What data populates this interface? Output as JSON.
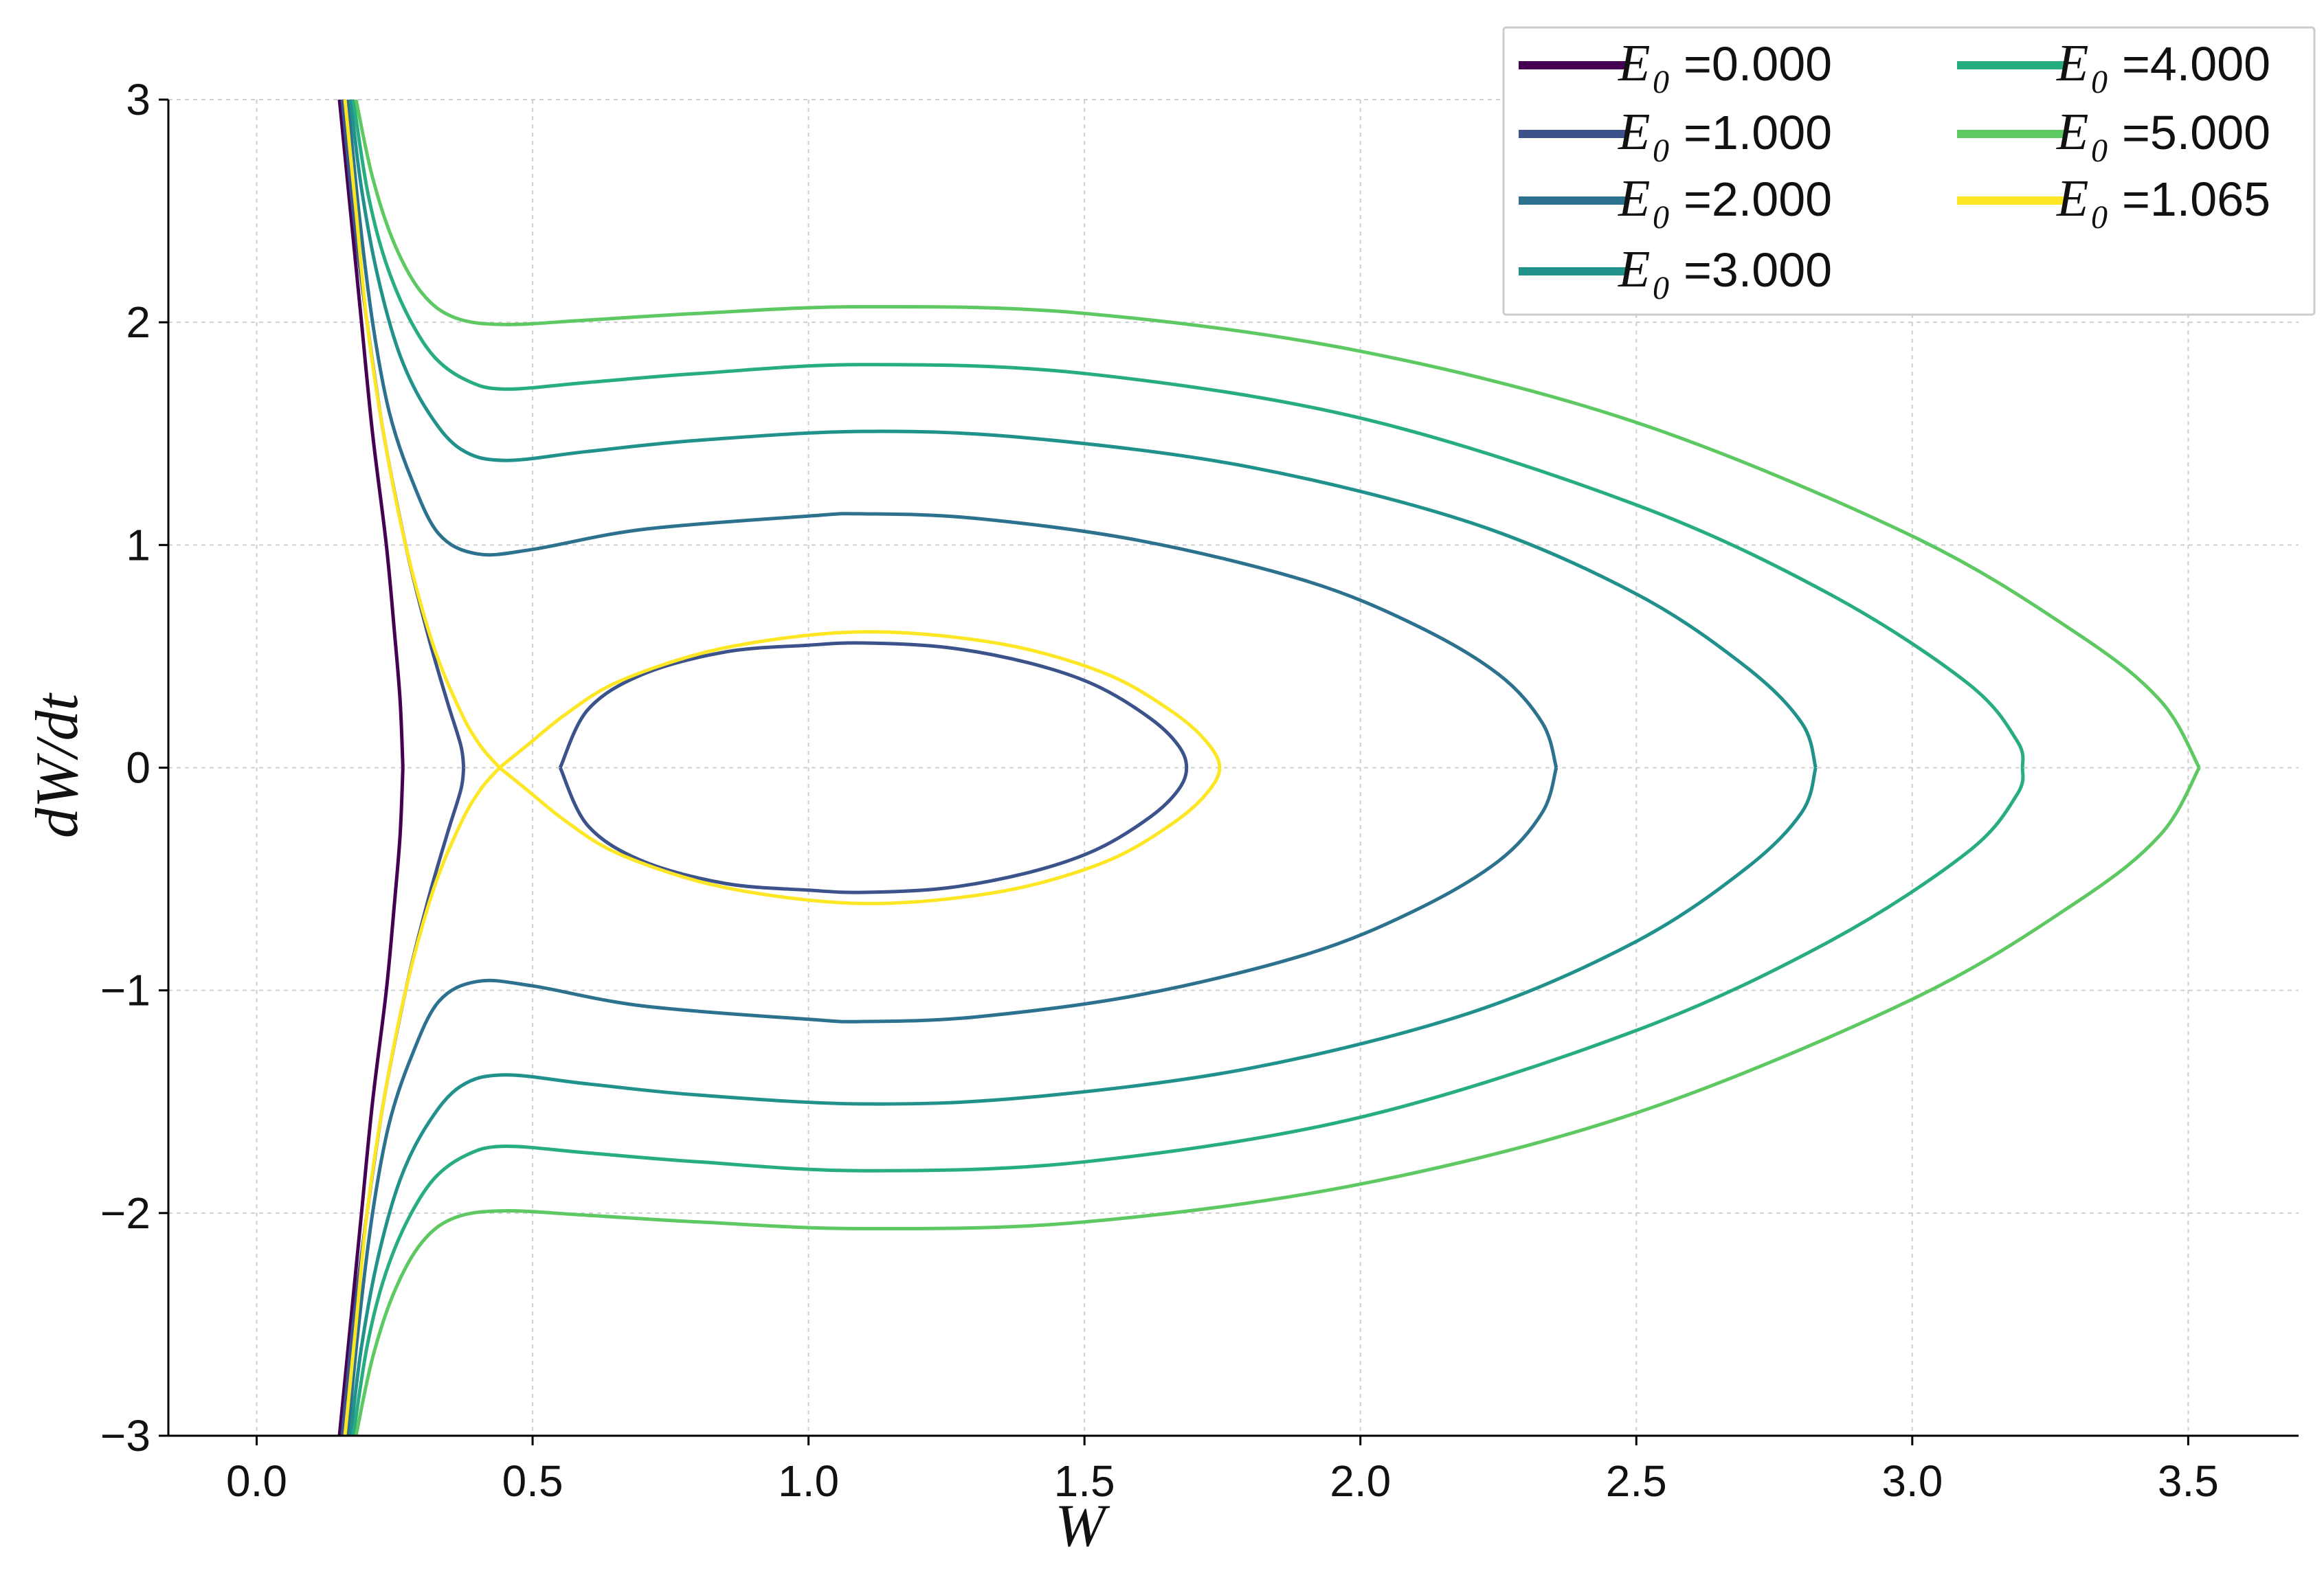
{
  "chart_data": {
    "type": "line",
    "title": "",
    "xlabel": "W",
    "ylabel": "dW/dt",
    "xlim": [
      -0.16,
      3.7
    ],
    "ylim": [
      -3,
      3
    ],
    "xticks": [
      0.0,
      0.5,
      1.0,
      1.5,
      2.0,
      2.5,
      3.0,
      3.5
    ],
    "xtick_labels": [
      "0.0",
      "0.5",
      "1.0",
      "1.5",
      "2.0",
      "2.5",
      "3.0",
      "3.5"
    ],
    "yticks": [
      -3,
      -2,
      -1,
      0,
      1,
      2,
      3
    ],
    "ytick_labels": [
      "−3",
      "−2",
      "−1",
      "0",
      "1",
      "2",
      "3"
    ],
    "grid": true,
    "legend_position": "top-right",
    "legend_symbol": "E",
    "legend_subscript": "0",
    "series": [
      {
        "name": "=0.000",
        "color": "#440154",
        "upper": [
          [
            0.15,
            3
          ],
          [
            0.17,
            2.5
          ],
          [
            0.19,
            2
          ],
          [
            0.21,
            1.5
          ],
          [
            0.235,
            1
          ],
          [
            0.25,
            0.6
          ],
          [
            0.26,
            0.3
          ],
          [
            0.265,
            0
          ]
        ],
        "lower": [
          [
            0.265,
            0
          ],
          [
            0.26,
            -0.3
          ],
          [
            0.25,
            -0.6
          ],
          [
            0.235,
            -1
          ],
          [
            0.21,
            -1.5
          ],
          [
            0.19,
            -2
          ],
          [
            0.17,
            -2.5
          ],
          [
            0.15,
            -3
          ]
        ]
      },
      {
        "name": "=1.000",
        "color": "#3b528b",
        "left_upper": [
          [
            0.155,
            3
          ],
          [
            0.175,
            2.5
          ],
          [
            0.2,
            2
          ],
          [
            0.23,
            1.5
          ],
          [
            0.27,
            1
          ],
          [
            0.31,
            0.6
          ],
          [
            0.345,
            0.3
          ],
          [
            0.37,
            0.1
          ],
          [
            0.375,
            0
          ]
        ],
        "left_lower": [
          [
            0.375,
            0
          ],
          [
            0.37,
            -0.1
          ],
          [
            0.345,
            -0.3
          ],
          [
            0.31,
            -0.6
          ],
          [
            0.27,
            -1
          ],
          [
            0.23,
            -1.5
          ],
          [
            0.2,
            -2
          ],
          [
            0.175,
            -2.5
          ],
          [
            0.155,
            -3
          ]
        ],
        "loop": [
          [
            0.55,
            0
          ],
          [
            0.6,
            0.26
          ],
          [
            0.7,
            0.42
          ],
          [
            0.85,
            0.52
          ],
          [
            1.0,
            0.55
          ],
          [
            1.1,
            0.56
          ],
          [
            1.25,
            0.54
          ],
          [
            1.4,
            0.47
          ],
          [
            1.52,
            0.37
          ],
          [
            1.62,
            0.22
          ],
          [
            1.67,
            0.1
          ],
          [
            1.685,
            0
          ],
          [
            1.67,
            -0.1
          ],
          [
            1.62,
            -0.22
          ],
          [
            1.52,
            -0.37
          ],
          [
            1.4,
            -0.47
          ],
          [
            1.25,
            -0.54
          ],
          [
            1.1,
            -0.56
          ],
          [
            1.0,
            -0.55
          ],
          [
            0.85,
            -0.52
          ],
          [
            0.7,
            -0.42
          ],
          [
            0.6,
            -0.26
          ],
          [
            0.55,
            0
          ]
        ]
      },
      {
        "name": "=2.000",
        "color": "#2c728e",
        "upper": [
          [
            0.165,
            3
          ],
          [
            0.185,
            2.5
          ],
          [
            0.21,
            2
          ],
          [
            0.24,
            1.6
          ],
          [
            0.28,
            1.3
          ],
          [
            0.33,
            1.05
          ],
          [
            0.4,
            0.96
          ],
          [
            0.5,
            0.98
          ],
          [
            0.7,
            1.07
          ],
          [
            1.0,
            1.13
          ],
          [
            1.1,
            1.14
          ],
          [
            1.3,
            1.12
          ],
          [
            1.6,
            1.02
          ],
          [
            1.9,
            0.84
          ],
          [
            2.1,
            0.64
          ],
          [
            2.25,
            0.42
          ],
          [
            2.33,
            0.2
          ],
          [
            2.355,
            0
          ]
        ],
        "lower": [
          [
            2.355,
            0
          ],
          [
            2.33,
            -0.2
          ],
          [
            2.25,
            -0.42
          ],
          [
            2.1,
            -0.64
          ],
          [
            1.9,
            -0.84
          ],
          [
            1.6,
            -1.02
          ],
          [
            1.3,
            -1.12
          ],
          [
            1.1,
            -1.14
          ],
          [
            1.0,
            -1.13
          ],
          [
            0.7,
            -1.07
          ],
          [
            0.5,
            -0.98
          ],
          [
            0.4,
            -0.96
          ],
          [
            0.33,
            -1.05
          ],
          [
            0.28,
            -1.3
          ],
          [
            0.24,
            -1.6
          ],
          [
            0.21,
            -2
          ],
          [
            0.185,
            -2.5
          ],
          [
            0.165,
            -3
          ]
        ]
      },
      {
        "name": "=3.000",
        "color": "#21918c",
        "upper": [
          [
            0.17,
            3
          ],
          [
            0.19,
            2.6
          ],
          [
            0.22,
            2.2
          ],
          [
            0.26,
            1.85
          ],
          [
            0.31,
            1.6
          ],
          [
            0.37,
            1.43
          ],
          [
            0.45,
            1.38
          ],
          [
            0.6,
            1.42
          ],
          [
            0.8,
            1.47
          ],
          [
            1.1,
            1.51
          ],
          [
            1.4,
            1.48
          ],
          [
            1.8,
            1.35
          ],
          [
            2.2,
            1.1
          ],
          [
            2.5,
            0.78
          ],
          [
            2.7,
            0.45
          ],
          [
            2.8,
            0.2
          ],
          [
            2.825,
            0
          ]
        ],
        "lower": [
          [
            2.825,
            0
          ],
          [
            2.8,
            -0.2
          ],
          [
            2.7,
            -0.45
          ],
          [
            2.5,
            -0.78
          ],
          [
            2.2,
            -1.1
          ],
          [
            1.8,
            -1.35
          ],
          [
            1.4,
            -1.48
          ],
          [
            1.1,
            -1.51
          ],
          [
            0.8,
            -1.47
          ],
          [
            0.6,
            -1.42
          ],
          [
            0.45,
            -1.38
          ],
          [
            0.37,
            -1.43
          ],
          [
            0.31,
            -1.6
          ],
          [
            0.26,
            -1.85
          ],
          [
            0.22,
            -2.2
          ],
          [
            0.19,
            -2.6
          ],
          [
            0.17,
            -3
          ]
        ]
      },
      {
        "name": "=4.000",
        "color": "#27ad81",
        "upper": [
          [
            0.175,
            3
          ],
          [
            0.2,
            2.6
          ],
          [
            0.23,
            2.3
          ],
          [
            0.27,
            2.05
          ],
          [
            0.32,
            1.85
          ],
          [
            0.38,
            1.74
          ],
          [
            0.45,
            1.7
          ],
          [
            0.6,
            1.73
          ],
          [
            0.8,
            1.77
          ],
          [
            1.1,
            1.81
          ],
          [
            1.5,
            1.77
          ],
          [
            2.0,
            1.57
          ],
          [
            2.5,
            1.18
          ],
          [
            2.85,
            0.78
          ],
          [
            3.1,
            0.38
          ],
          [
            3.19,
            0.12
          ],
          [
            3.2,
            0
          ]
        ],
        "lower": [
          [
            3.2,
            0
          ],
          [
            3.19,
            -0.12
          ],
          [
            3.1,
            -0.38
          ],
          [
            2.85,
            -0.78
          ],
          [
            2.5,
            -1.18
          ],
          [
            2.0,
            -1.57
          ],
          [
            1.5,
            -1.77
          ],
          [
            1.1,
            -1.81
          ],
          [
            0.8,
            -1.77
          ],
          [
            0.6,
            -1.73
          ],
          [
            0.45,
            -1.7
          ],
          [
            0.38,
            -1.74
          ],
          [
            0.32,
            -1.85
          ],
          [
            0.27,
            -2.05
          ],
          [
            0.23,
            -2.3
          ],
          [
            0.2,
            -2.6
          ],
          [
            0.175,
            -3
          ]
        ]
      },
      {
        "name": "=5.000",
        "color": "#5ec962",
        "upper": [
          [
            0.18,
            3
          ],
          [
            0.21,
            2.65
          ],
          [
            0.25,
            2.35
          ],
          [
            0.3,
            2.13
          ],
          [
            0.36,
            2.02
          ],
          [
            0.45,
            1.99
          ],
          [
            0.6,
            2.01
          ],
          [
            0.8,
            2.04
          ],
          [
            1.1,
            2.07
          ],
          [
            1.5,
            2.04
          ],
          [
            2.0,
            1.87
          ],
          [
            2.5,
            1.55
          ],
          [
            3.0,
            1.04
          ],
          [
            3.3,
            0.6
          ],
          [
            3.45,
            0.3
          ],
          [
            3.52,
            0
          ]
        ],
        "lower": [
          [
            3.52,
            0
          ],
          [
            3.45,
            -0.3
          ],
          [
            3.3,
            -0.6
          ],
          [
            3.0,
            -1.04
          ],
          [
            2.5,
            -1.55
          ],
          [
            2.0,
            -1.87
          ],
          [
            1.5,
            -2.04
          ],
          [
            1.1,
            -2.07
          ],
          [
            0.8,
            -2.04
          ],
          [
            0.6,
            -2.01
          ],
          [
            0.45,
            -1.99
          ],
          [
            0.36,
            -2.02
          ],
          [
            0.3,
            -2.13
          ],
          [
            0.25,
            -2.35
          ],
          [
            0.21,
            -2.65
          ],
          [
            0.18,
            -3
          ]
        ]
      },
      {
        "name": "=1.065",
        "color": "#fde725",
        "left_upper": [
          [
            0.16,
            3
          ],
          [
            0.18,
            2.5
          ],
          [
            0.2,
            2
          ],
          [
            0.23,
            1.5
          ],
          [
            0.27,
            1
          ],
          [
            0.32,
            0.55
          ],
          [
            0.37,
            0.25
          ],
          [
            0.405,
            0.1
          ],
          [
            0.44,
            0
          ]
        ],
        "left_lower": [
          [
            0.44,
            0
          ],
          [
            0.405,
            -0.1
          ],
          [
            0.37,
            -0.25
          ],
          [
            0.32,
            -0.55
          ],
          [
            0.27,
            -1
          ],
          [
            0.23,
            -1.5
          ],
          [
            0.2,
            -2
          ],
          [
            0.18,
            -2.5
          ],
          [
            0.16,
            -3
          ]
        ],
        "loop": [
          [
            0.44,
            0
          ],
          [
            0.49,
            0.1
          ],
          [
            0.56,
            0.24
          ],
          [
            0.65,
            0.38
          ],
          [
            0.8,
            0.51
          ],
          [
            0.95,
            0.58
          ],
          [
            1.1,
            0.61
          ],
          [
            1.25,
            0.59
          ],
          [
            1.4,
            0.53
          ],
          [
            1.55,
            0.41
          ],
          [
            1.66,
            0.25
          ],
          [
            1.72,
            0.12
          ],
          [
            1.745,
            0
          ],
          [
            1.72,
            -0.12
          ],
          [
            1.66,
            -0.25
          ],
          [
            1.55,
            -0.41
          ],
          [
            1.4,
            -0.53
          ],
          [
            1.25,
            -0.59
          ],
          [
            1.1,
            -0.61
          ],
          [
            0.95,
            -0.58
          ],
          [
            0.8,
            -0.51
          ],
          [
            0.65,
            -0.38
          ],
          [
            0.56,
            -0.24
          ],
          [
            0.49,
            -0.1
          ],
          [
            0.44,
            0
          ]
        ]
      }
    ]
  }
}
